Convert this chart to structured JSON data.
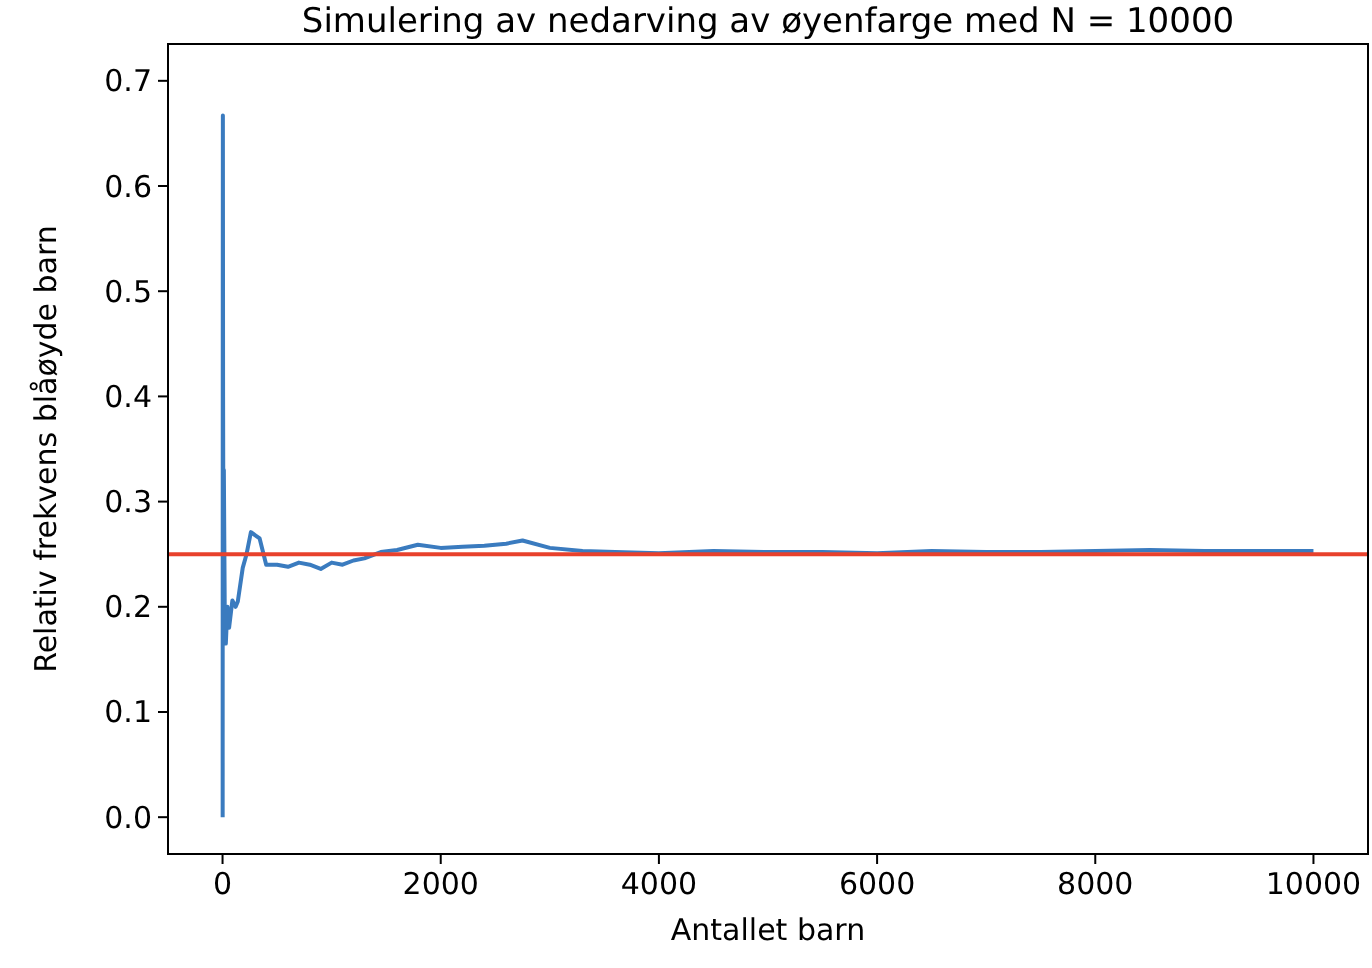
{
  "chart_data": {
    "type": "line",
    "title": "Simulering av nedarving av øyenfarge med N = 10000",
    "xlabel": "Antallet barn",
    "ylabel": "Relativ frekvens blåøyde barn",
    "x": [
      1,
      2,
      3,
      5,
      8,
      12,
      20,
      30,
      45,
      60,
      90,
      120,
      140,
      185,
      220,
      260,
      300,
      340,
      400,
      500,
      600,
      700,
      800,
      900,
      1000,
      1100,
      1200,
      1300,
      1450,
      1600,
      1790,
      2000,
      2200,
      2400,
      2600,
      2750,
      3000,
      3300,
      3600,
      4000,
      4500,
      5000,
      5500,
      6000,
      6500,
      7000,
      7500,
      8000,
      8500,
      9000,
      9500,
      10000
    ],
    "series": [
      {
        "color": "#3a7bbf",
        "values": [
          0,
          0.5,
          0.667,
          0.4,
          0.25,
          0.33,
          0.2,
          0.165,
          0.2,
          0.18,
          0.206,
          0.2,
          0.205,
          0.237,
          0.25,
          0.271,
          0.268,
          0.265,
          0.24,
          0.24,
          0.238,
          0.242,
          0.24,
          0.236,
          0.242,
          0.24,
          0.244,
          0.246,
          0.252,
          0.254,
          0.259,
          0.256,
          0.257,
          0.258,
          0.26,
          0.263,
          0.256,
          0.253,
          0.252,
          0.251,
          0.253,
          0.252,
          0.252,
          0.251,
          0.253,
          0.252,
          0.252,
          0.253,
          0.254,
          0.253,
          0.253,
          0.253
        ]
      }
    ],
    "ref_lines": [
      {
        "axis": "y",
        "value": 0.25,
        "color": "#e8412c"
      }
    ],
    "xlim": [
      -500,
      10500
    ],
    "xticks": [
      0,
      2000,
      4000,
      6000,
      8000,
      10000
    ],
    "ylim": [
      -0.035,
      0.735
    ],
    "yticks": [
      {
        "value": 0,
        "label": "0.0"
      },
      0.1,
      0.2,
      0.3,
      0.4,
      0.5,
      0.6,
      0.7
    ],
    "grid": false,
    "marker": "none",
    "line_style": "solid"
  }
}
